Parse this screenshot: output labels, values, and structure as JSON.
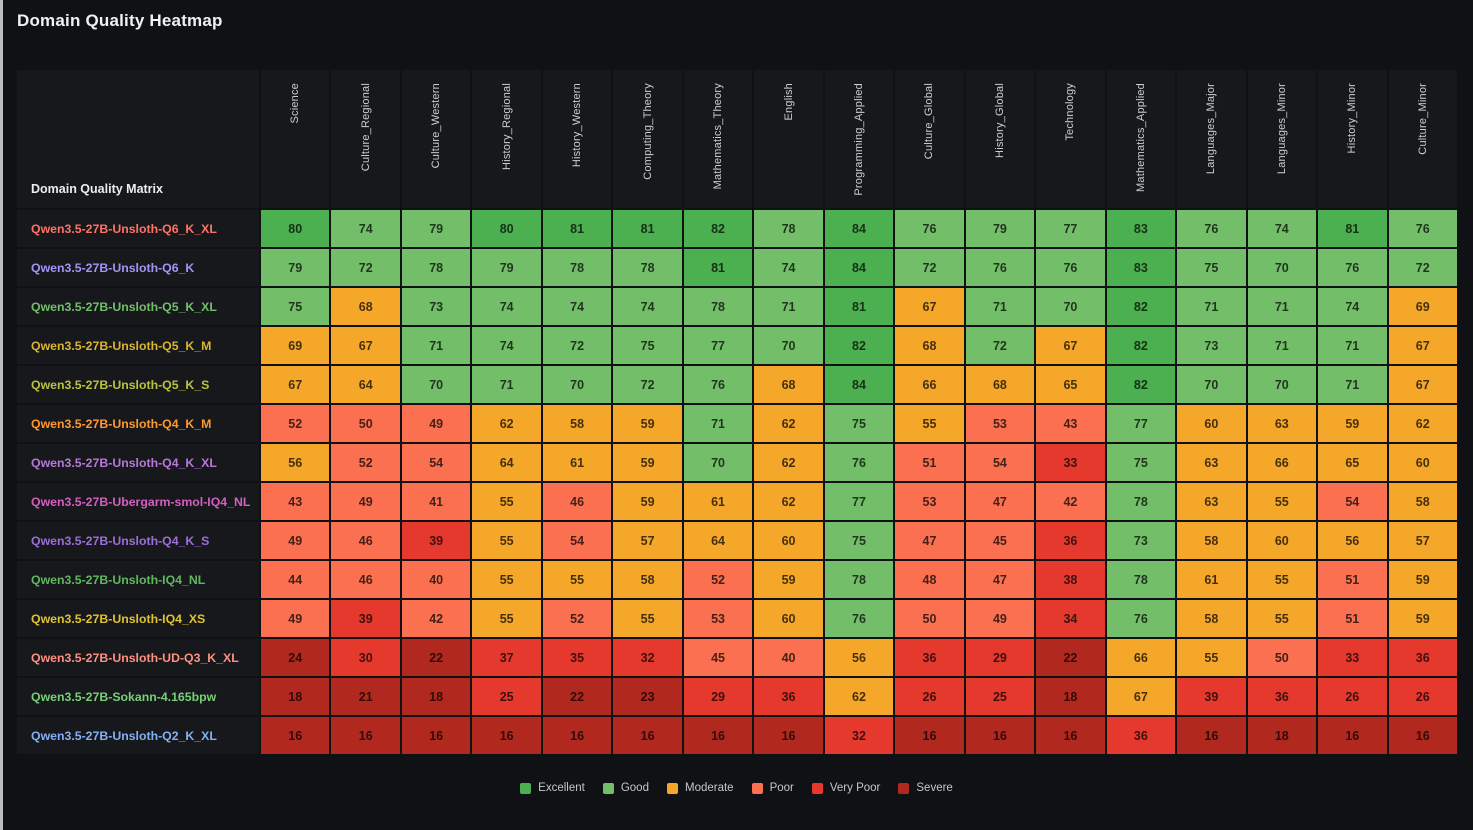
{
  "title": "Domain Quality Heatmap",
  "corner_label": "Domain Quality Matrix",
  "chart_data": {
    "type": "heatmap",
    "title": "Domain Quality Heatmap",
    "value_range": [
      0,
      100
    ],
    "legend_position": "bottom-center",
    "columns": [
      "Science",
      "Culture_Regional",
      "Culture_Western",
      "History_Regional",
      "History_Western",
      "Computing_Theory",
      "Mathematics_Theory",
      "English",
      "Programming_Applied",
      "Culture_Global",
      "History_Global",
      "Technology",
      "Mathematics_Applied",
      "Languages_Major",
      "Languages_Minor",
      "History_Minor",
      "Culture_Minor"
    ],
    "rows": [
      {
        "model": "Qwen3.5-27B-Unsloth-Q6_K_XL",
        "label_color": "#ff7366",
        "values": [
          80,
          74,
          79,
          80,
          81,
          81,
          82,
          78,
          84,
          76,
          79,
          77,
          83,
          76,
          74,
          81,
          76
        ]
      },
      {
        "model": "Qwen3.5-27B-Unsloth-Q6_K",
        "label_color": "#a295f5",
        "values": [
          79,
          72,
          78,
          79,
          78,
          78,
          81,
          74,
          84,
          72,
          76,
          76,
          83,
          75,
          70,
          76,
          72
        ]
      },
      {
        "model": "Qwen3.5-27B-Unsloth-Q5_K_XL",
        "label_color": "#73bf69",
        "values": [
          75,
          68,
          73,
          74,
          74,
          74,
          78,
          71,
          81,
          67,
          71,
          70,
          82,
          71,
          71,
          74,
          69
        ]
      },
      {
        "model": "Qwen3.5-27B-Unsloth-Q5_K_M",
        "label_color": "#d9b530",
        "values": [
          69,
          67,
          71,
          74,
          72,
          75,
          77,
          70,
          82,
          68,
          72,
          67,
          82,
          73,
          71,
          71,
          67
        ]
      },
      {
        "model": "Qwen3.5-27B-Unsloth-Q5_K_S",
        "label_color": "#bcc23d",
        "values": [
          67,
          64,
          70,
          71,
          70,
          72,
          76,
          68,
          84,
          66,
          68,
          65,
          82,
          70,
          70,
          71,
          67
        ]
      },
      {
        "model": "Qwen3.5-27B-Unsloth-Q4_K_M",
        "label_color": "#ff9830",
        "values": [
          52,
          50,
          49,
          62,
          58,
          59,
          71,
          62,
          75,
          55,
          53,
          43,
          77,
          60,
          63,
          59,
          62
        ]
      },
      {
        "model": "Qwen3.5-27B-Unsloth-Q4_K_XL",
        "label_color": "#b877d9",
        "values": [
          56,
          52,
          54,
          64,
          61,
          59,
          70,
          62,
          76,
          51,
          54,
          33,
          75,
          63,
          66,
          65,
          60
        ]
      },
      {
        "model": "Qwen3.5-27B-Ubergarm-smol-IQ4_NL",
        "label_color": "#d45fc0",
        "values": [
          43,
          49,
          41,
          55,
          46,
          59,
          61,
          62,
          77,
          53,
          47,
          42,
          78,
          63,
          55,
          54,
          58
        ]
      },
      {
        "model": "Qwen3.5-27B-Unsloth-Q4_K_S",
        "label_color": "#9a70d8",
        "values": [
          49,
          46,
          39,
          55,
          54,
          57,
          64,
          60,
          75,
          47,
          45,
          36,
          73,
          58,
          60,
          56,
          57
        ]
      },
      {
        "model": "Qwen3.5-27B-Unsloth-IQ4_NL",
        "label_color": "#5fb85f",
        "values": [
          44,
          46,
          40,
          55,
          55,
          58,
          52,
          59,
          78,
          48,
          47,
          38,
          78,
          61,
          55,
          51,
          59
        ]
      },
      {
        "model": "Qwen3.5-27B-Unsloth-IQ4_XS",
        "label_color": "#e0c330",
        "values": [
          49,
          39,
          42,
          55,
          52,
          55,
          53,
          60,
          76,
          50,
          49,
          34,
          76,
          58,
          55,
          51,
          59
        ]
      },
      {
        "model": "Qwen3.5-27B-Unsloth-UD-Q3_K_XL",
        "label_color": "#ff8f80",
        "values": [
          24,
          30,
          22,
          37,
          35,
          32,
          45,
          40,
          56,
          36,
          29,
          22,
          66,
          55,
          50,
          33,
          36
        ]
      },
      {
        "model": "Qwen3.5-27B-Sokann-4.165bpw",
        "label_color": "#77d077",
        "values": [
          18,
          21,
          18,
          25,
          22,
          23,
          29,
          36,
          62,
          26,
          25,
          18,
          67,
          39,
          36,
          26,
          26
        ]
      },
      {
        "model": "Qwen3.5-27B-Unsloth-Q2_K_XL",
        "label_color": "#84aff5",
        "values": [
          16,
          16,
          16,
          16,
          16,
          16,
          16,
          16,
          32,
          16,
          16,
          16,
          36,
          16,
          18,
          16,
          16
        ]
      }
    ],
    "buckets": [
      {
        "label": "Excellent",
        "min": 80,
        "color": "#4caf50"
      },
      {
        "label": "Good",
        "min": 70,
        "color": "#73bf69"
      },
      {
        "label": "Moderate",
        "min": 55,
        "color": "#f5a72a"
      },
      {
        "label": "Poor",
        "min": 40,
        "color": "#fa7050"
      },
      {
        "label": "Very Poor",
        "min": 25,
        "color": "#e5392e"
      },
      {
        "label": "Severe",
        "min": 0,
        "color": "#b0281e"
      }
    ]
  }
}
